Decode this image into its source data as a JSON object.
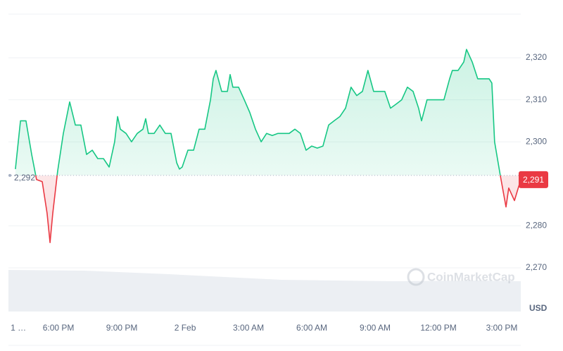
{
  "chart_data": {
    "type": "line",
    "x": [
      15.96,
      16.2,
      16.46,
      16.73,
      16.96,
      17.23,
      17.46,
      17.6,
      17.73,
      17.96,
      18.23,
      18.53,
      18.8,
      19.06,
      19.33,
      19.6,
      19.86,
      20.13,
      20.4,
      20.66,
      20.8,
      20.93,
      21.2,
      21.46,
      21.73,
      22.0,
      22.13,
      22.26,
      22.53,
      22.8,
      23.06,
      23.33,
      23.6,
      23.73,
      23.86,
      24.13,
      24.4,
      24.66,
      24.93,
      25.2,
      25.33,
      25.46,
      25.73,
      26.0,
      26.13,
      26.26,
      26.53,
      26.8,
      27.06,
      27.33,
      27.6,
      27.86,
      28.13,
      28.4,
      28.66,
      28.93,
      29.2,
      29.46,
      29.73,
      30.0,
      30.26,
      30.53,
      30.8,
      31.06,
      31.33,
      31.6,
      31.86,
      32.13,
      32.4,
      32.66,
      32.93,
      33.2,
      33.46,
      33.73,
      34.0,
      34.26,
      34.53,
      34.8,
      35.06,
      35.2,
      35.46,
      35.73,
      36.0,
      36.26,
      36.53,
      36.66,
      36.93,
      37.2,
      37.33,
      37.6,
      37.86,
      38.13,
      38.4,
      38.53,
      38.66,
      38.93,
      39.2,
      39.33,
      39.6,
      39.9
    ],
    "values": [
      2293.5,
      2305,
      2305,
      2297,
      2291,
      2290.5,
      2283,
      2276,
      2283,
      2293,
      2302,
      2309.5,
      2304,
      2304,
      2297,
      2298,
      2296,
      2296,
      2294,
      2300,
      2306,
      2303,
      2302,
      2300,
      2302,
      2303,
      2305.5,
      2302,
      2302,
      2304,
      2302,
      2302,
      2295,
      2293.5,
      2294,
      2298,
      2298,
      2303,
      2303,
      2310,
      2315,
      2317,
      2312,
      2312,
      2316,
      2313,
      2313,
      2310,
      2307,
      2303,
      2300,
      2302,
      2301.5,
      2302,
      2302,
      2302,
      2303,
      2302,
      2298,
      2299,
      2298.5,
      2299,
      2304,
      2305,
      2306,
      2308,
      2313,
      2311,
      2312,
      2317,
      2312,
      2312,
      2312,
      2308,
      2309,
      2310,
      2313,
      2312,
      2308,
      2305,
      2310,
      2310,
      2310,
      2310,
      2315,
      2317,
      2317,
      2319,
      2322,
      2319,
      2315,
      2315,
      2315,
      2314,
      2300,
      2292,
      2284.5,
      2289,
      2286,
      2291
    ],
    "up_color": "#16c784",
    "down_color": "#ea3943",
    "baseline": {
      "value": 2292,
      "label": "2,292"
    },
    "current": {
      "value": 2291,
      "label": "2,291"
    },
    "xlim": [
      15.63,
      39.9
    ],
    "xticks": [
      {
        "value": 16.1,
        "label": "1 …"
      },
      {
        "value": 18,
        "label": "6:00 PM"
      },
      {
        "value": 21,
        "label": "9:00 PM"
      },
      {
        "value": 24,
        "label": "2 Feb"
      },
      {
        "value": 27,
        "label": "3:00 AM"
      },
      {
        "value": 30,
        "label": "6:00 AM"
      },
      {
        "value": 33,
        "label": "9:00 AM"
      },
      {
        "value": 36,
        "label": "12:00 PM"
      },
      {
        "value": 39,
        "label": "3:00 PM"
      }
    ],
    "ylim": [
      2259.6,
      2330.4
    ],
    "yticks": [
      {
        "value": 2270,
        "label": "2,270"
      },
      {
        "value": 2280,
        "label": "2,280"
      },
      {
        "value": 2300,
        "label": "2,300"
      },
      {
        "value": 2310,
        "label": "2,310"
      },
      {
        "value": 2320,
        "label": "2,320"
      }
    ],
    "grid": true,
    "currency": "USD",
    "watermark": "CoinMarketCap"
  }
}
